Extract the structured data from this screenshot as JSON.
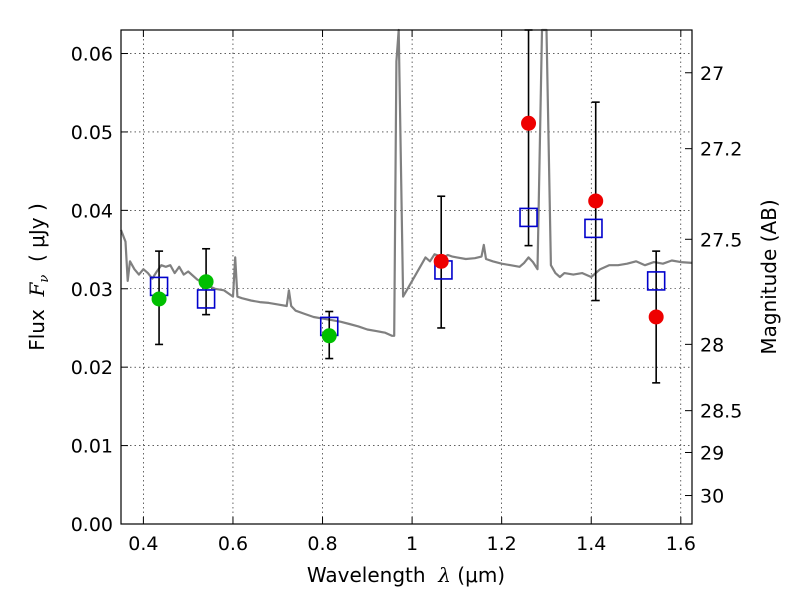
{
  "chart_data": {
    "type": "scatter",
    "xlabel": {
      "pre": "Wavelength  ",
      "sym": "λ",
      "post": " (μm)"
    },
    "ylabel": {
      "pre": "Flux  ",
      "sym": "F",
      "sub": "ν",
      "post": "  ( μJy )"
    },
    "y2label": "Magnitude (AB)",
    "xlim": [
      0.35,
      1.625
    ],
    "ylim": [
      0.0,
      0.063
    ],
    "grid": true,
    "x_ticks": [
      {
        "value": 0.4,
        "label": "0.4"
      },
      {
        "value": 0.6,
        "label": "0.6"
      },
      {
        "value": 0.8,
        "label": "0.8"
      },
      {
        "value": 1.0,
        "label": "1"
      },
      {
        "value": 1.2,
        "label": "1.2"
      },
      {
        "value": 1.4,
        "label": "1.4"
      },
      {
        "value": 1.6,
        "label": "1.6"
      }
    ],
    "y_ticks": [
      {
        "value": 0.0,
        "label": "0.00"
      },
      {
        "value": 0.01,
        "label": "0.01"
      },
      {
        "value": 0.02,
        "label": "0.02"
      },
      {
        "value": 0.03,
        "label": "0.03"
      },
      {
        "value": 0.04,
        "label": "0.04"
      },
      {
        "value": 0.05,
        "label": "0.05"
      },
      {
        "value": 0.06,
        "label": "0.06"
      }
    ],
    "y2_ticks": [
      {
        "value": 27.0,
        "label": "27"
      },
      {
        "value": 27.2,
        "label": "27.2"
      },
      {
        "value": 27.5,
        "label": "27.5"
      },
      {
        "value": 28.0,
        "label": "28"
      },
      {
        "value": 28.5,
        "label": "28.5"
      },
      {
        "value": 29.0,
        "label": "29"
      },
      {
        "value": 30.0,
        "label": "30"
      }
    ],
    "colors": {
      "model": "#808080",
      "green": "#00bf00",
      "red": "#ee0000",
      "square": "#0000cc",
      "error": "#000000"
    },
    "series": [
      {
        "marker": "circle",
        "color": "green",
        "points": [
          {
            "x": 0.435,
            "y": 0.0287,
            "ylo": 0.0229,
            "yhi": 0.0348
          },
          {
            "x": 0.54,
            "y": 0.0309,
            "ylo": 0.0267,
            "yhi": 0.0351
          },
          {
            "x": 0.815,
            "y": 0.024,
            "ylo": 0.0211,
            "yhi": 0.0271
          }
        ]
      },
      {
        "marker": "circle",
        "color": "red",
        "points": [
          {
            "x": 1.065,
            "y": 0.0335,
            "ylo": 0.025,
            "yhi": 0.0418
          },
          {
            "x": 1.26,
            "y": 0.0511,
            "ylo": 0.0355,
            "yhi": 0.063
          },
          {
            "x": 1.41,
            "y": 0.0412,
            "ylo": 0.0285,
            "yhi": 0.0538
          },
          {
            "x": 1.545,
            "y": 0.0264,
            "ylo": 0.018,
            "yhi": 0.0348
          }
        ]
      },
      {
        "marker": "square",
        "color": "square",
        "points": [
          {
            "x": 0.435,
            "y": 0.0303
          },
          {
            "x": 0.54,
            "y": 0.0287
          },
          {
            "x": 0.815,
            "y": 0.0252
          },
          {
            "x": 1.07,
            "y": 0.0324
          },
          {
            "x": 1.26,
            "y": 0.0391
          },
          {
            "x": 1.405,
            "y": 0.0377
          },
          {
            "x": 1.545,
            "y": 0.031
          }
        ]
      },
      {
        "marker": "line",
        "color": "model",
        "x": [
          0.35,
          0.36,
          0.365,
          0.37,
          0.38,
          0.39,
          0.4,
          0.41,
          0.42,
          0.43,
          0.44,
          0.45,
          0.46,
          0.47,
          0.48,
          0.49,
          0.5,
          0.52,
          0.54,
          0.56,
          0.58,
          0.6,
          0.605,
          0.61,
          0.62,
          0.64,
          0.66,
          0.68,
          0.7,
          0.72,
          0.725,
          0.73,
          0.74,
          0.76,
          0.78,
          0.8,
          0.82,
          0.84,
          0.86,
          0.88,
          0.9,
          0.92,
          0.94,
          0.955,
          0.96,
          0.965,
          0.97,
          0.98,
          0.99,
          1.0,
          1.01,
          1.02,
          1.03,
          1.04,
          1.05,
          1.06,
          1.07,
          1.08,
          1.09,
          1.1,
          1.12,
          1.14,
          1.155,
          1.16,
          1.165,
          1.18,
          1.2,
          1.22,
          1.24,
          1.25,
          1.26,
          1.27,
          1.28,
          1.29,
          1.3,
          1.31,
          1.32,
          1.33,
          1.34,
          1.36,
          1.38,
          1.4,
          1.42,
          1.44,
          1.46,
          1.48,
          1.5,
          1.52,
          1.54,
          1.56,
          1.58,
          1.6,
          1.625
        ],
        "y": [
          0.0375,
          0.036,
          0.031,
          0.0335,
          0.0325,
          0.0318,
          0.0325,
          0.032,
          0.0313,
          0.0322,
          0.033,
          0.0328,
          0.033,
          0.032,
          0.0328,
          0.0318,
          0.0322,
          0.0312,
          0.0305,
          0.03,
          0.0298,
          0.029,
          0.034,
          0.029,
          0.0288,
          0.0285,
          0.0283,
          0.0282,
          0.028,
          0.0278,
          0.0298,
          0.0278,
          0.0272,
          0.0268,
          0.0264,
          0.0262,
          0.026,
          0.0258,
          0.0255,
          0.0252,
          0.0248,
          0.0246,
          0.0244,
          0.024,
          0.024,
          0.059,
          0.063,
          0.029,
          0.03,
          0.031,
          0.032,
          0.033,
          0.034,
          0.0335,
          0.0344,
          0.0342,
          0.034,
          0.0343,
          0.0341,
          0.034,
          0.0338,
          0.0339,
          0.0341,
          0.0356,
          0.0338,
          0.0335,
          0.0332,
          0.033,
          0.0328,
          0.0333,
          0.034,
          0.0334,
          0.0325,
          0.063,
          0.063,
          0.033,
          0.032,
          0.0315,
          0.032,
          0.0318,
          0.032,
          0.0315,
          0.0325,
          0.033,
          0.033,
          0.0332,
          0.0335,
          0.033,
          0.0334,
          0.0332,
          0.0336,
          0.0334,
          0.0333
        ]
      }
    ]
  }
}
